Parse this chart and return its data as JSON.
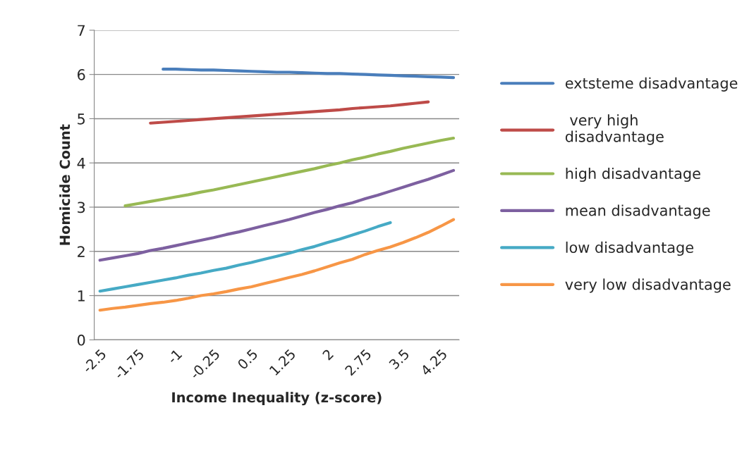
{
  "chart_data": {
    "type": "line",
    "xlabel": "Income Inequality (z-score)",
    "ylabel": "Homicide Count",
    "categories": [
      "-2.5",
      null,
      null,
      "-1.75",
      null,
      null,
      "-1",
      null,
      null,
      "-0.25",
      null,
      null,
      "0.5",
      null,
      null,
      "1.25",
      null,
      null,
      "2",
      null,
      null,
      "2.75",
      null,
      null,
      "3.5",
      null,
      null,
      "4.25",
      null
    ],
    "series": [
      {
        "name": "extsteme disadvantage",
        "color": "#4a7ebb",
        "values": [
          null,
          null,
          null,
          null,
          null,
          6.12,
          6.12,
          6.11,
          6.1,
          6.1,
          6.09,
          6.08,
          6.07,
          6.06,
          6.05,
          6.05,
          6.04,
          6.03,
          6.02,
          6.02,
          6.01,
          6.0,
          5.99,
          5.98,
          5.97,
          5.96,
          5.95,
          5.94,
          5.93
        ]
      },
      {
        "name": " very high\ndisadvantage",
        "color": "#be4b48",
        "values": [
          null,
          null,
          null,
          null,
          4.9,
          4.92,
          4.94,
          4.96,
          4.98,
          5.0,
          5.02,
          5.04,
          5.06,
          5.08,
          5.1,
          5.12,
          5.14,
          5.16,
          5.18,
          5.2,
          5.23,
          5.25,
          5.27,
          5.29,
          5.32,
          5.35,
          5.38,
          null,
          null
        ]
      },
      {
        "name": "high disadvantage",
        "color": "#98b954",
        "values": [
          null,
          null,
          3.03,
          3.08,
          3.13,
          3.18,
          3.23,
          3.28,
          3.34,
          3.39,
          3.45,
          3.51,
          3.57,
          3.63,
          3.69,
          3.75,
          3.81,
          3.87,
          3.94,
          4.0,
          4.07,
          4.13,
          4.2,
          4.26,
          4.33,
          4.39,
          4.45,
          4.51,
          4.56
        ]
      },
      {
        "name": "mean disadvantage",
        "color": "#7d60a0",
        "values": [
          1.8,
          1.85,
          1.9,
          1.95,
          2.02,
          2.07,
          2.13,
          2.19,
          2.25,
          2.31,
          2.38,
          2.44,
          2.51,
          2.58,
          2.65,
          2.72,
          2.8,
          2.88,
          2.95,
          3.03,
          3.1,
          3.19,
          3.27,
          3.36,
          3.45,
          3.54,
          3.63,
          3.73,
          3.83
        ]
      },
      {
        "name": "low disadvantage",
        "color": "#46aac5",
        "values": [
          1.1,
          1.15,
          1.2,
          1.25,
          1.3,
          1.35,
          1.4,
          1.46,
          1.51,
          1.57,
          1.62,
          1.69,
          1.75,
          1.82,
          1.89,
          1.96,
          2.04,
          2.11,
          2.2,
          2.28,
          2.37,
          2.46,
          2.56,
          2.65,
          null,
          null,
          null,
          null,
          null
        ]
      },
      {
        "name": "very low disadvantage",
        "color": "#f79646",
        "values": [
          0.67,
          0.71,
          0.74,
          0.78,
          0.82,
          0.85,
          0.89,
          0.94,
          1.0,
          1.04,
          1.09,
          1.15,
          1.2,
          1.27,
          1.34,
          1.41,
          1.48,
          1.56,
          1.65,
          1.74,
          1.82,
          1.93,
          2.02,
          2.1,
          2.2,
          2.31,
          2.43,
          2.57,
          2.72
        ]
      }
    ],
    "ylim": [
      0,
      7
    ],
    "yticks": [
      0,
      1,
      2,
      3,
      4,
      5,
      6,
      7
    ],
    "grid": "y",
    "legend": "right",
    "marker": "none",
    "line_style": "solid"
  }
}
